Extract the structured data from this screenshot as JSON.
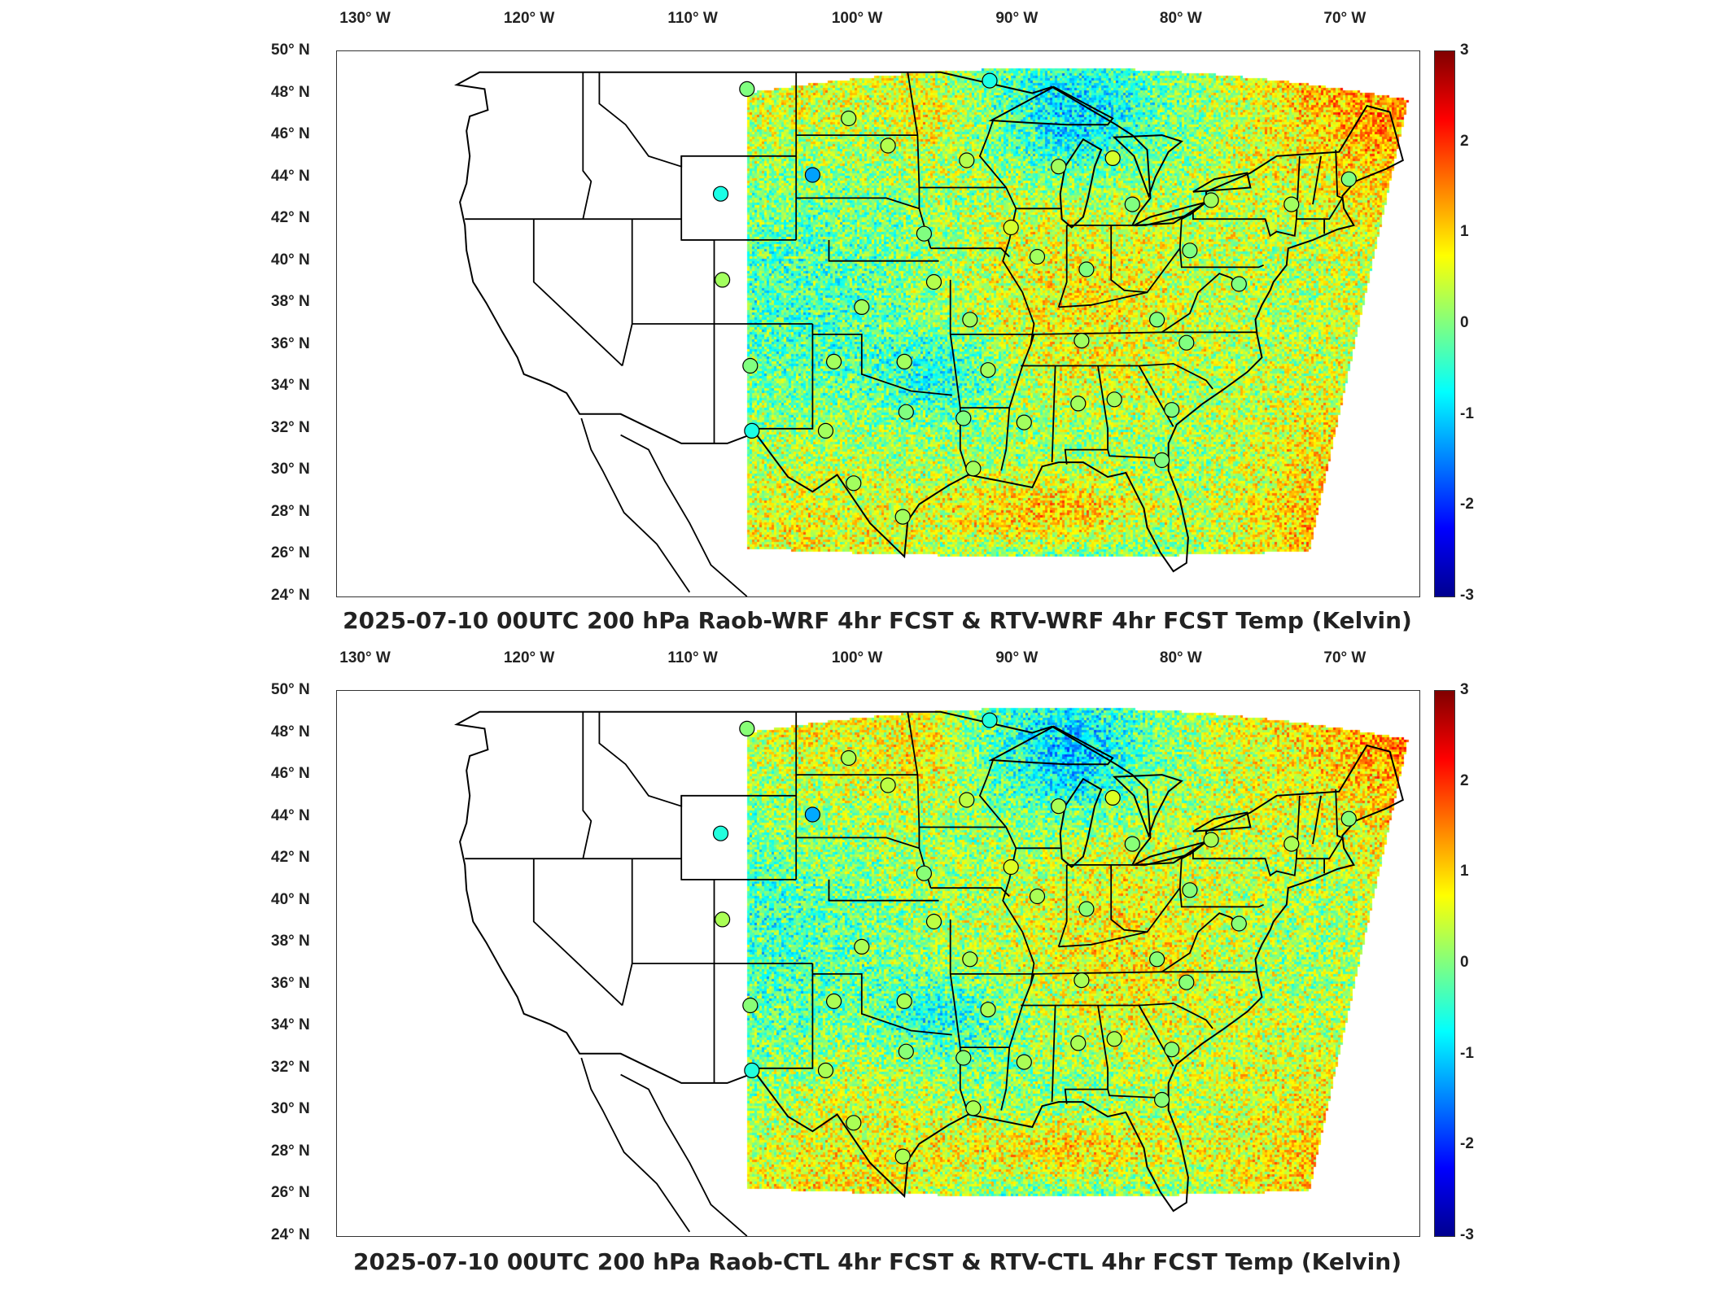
{
  "panels": [
    {
      "id": "top",
      "title": "2025-07-10 00UTC 200 hPa Raob-WRF 4hr FCST & RTV-WRF 4hr FCST Temp (Kelvin)"
    },
    {
      "id": "bottom",
      "title": "2025-07-10 00UTC 200 hPa Raob-CTL 4hr FCST & RTV-CTL 4hr FCST Temp (Kelvin)"
    }
  ],
  "lon_ticks": [
    "130° W",
    "120° W",
    "110° W",
    "100° W",
    "90° W",
    "80° W",
    "70° W"
  ],
  "lon_values": [
    -130,
    -120,
    -110,
    -100,
    -90,
    -80,
    -70
  ],
  "lat_ticks": [
    "50° N",
    "48° N",
    "46° N",
    "44° N",
    "42° N",
    "40° N",
    "38° N",
    "36° N",
    "34° N",
    "32° N",
    "30° N",
    "28° N",
    "26° N",
    "24° N"
  ],
  "lat_values": [
    50,
    48,
    46,
    44,
    42,
    40,
    38,
    36,
    34,
    32,
    30,
    28,
    26,
    24
  ],
  "colorbar": {
    "labels": [
      "3",
      "2",
      "1",
      "0",
      "-1",
      "-2",
      "-3"
    ],
    "values": [
      3,
      2,
      1,
      0,
      -1,
      -2,
      -3
    ],
    "range": [
      -3,
      3
    ],
    "colormap": [
      "#00008f",
      "#0000ff",
      "#0080ff",
      "#00ffff",
      "#80ff80",
      "#ffff00",
      "#ff8000",
      "#ff0000",
      "#800000"
    ]
  },
  "map_extent": {
    "lon": [
      -132,
      -66
    ],
    "lat": [
      24,
      50
    ]
  },
  "raob_stations": [
    {
      "lon": -107,
      "lat": 48.2,
      "value": 0.0
    },
    {
      "lon": -103,
      "lat": 44.1,
      "value": -1.3
    },
    {
      "lon": -108.6,
      "lat": 43.2,
      "value": -0.6
    },
    {
      "lon": -108.5,
      "lat": 39.1,
      "value": 0.2
    },
    {
      "lon": -106.8,
      "lat": 35.0,
      "value": 0.0
    },
    {
      "lon": -106.7,
      "lat": 31.9,
      "value": -0.6
    },
    {
      "lon": -100.8,
      "lat": 46.8,
      "value": 0.2
    },
    {
      "lon": -98.4,
      "lat": 45.5,
      "value": 0.3
    },
    {
      "lon": -93.6,
      "lat": 44.8,
      "value": 0.3
    },
    {
      "lon": -92.2,
      "lat": 48.6,
      "value": -0.6
    },
    {
      "lon": -88.0,
      "lat": 44.5,
      "value": 0.2
    },
    {
      "lon": -84.7,
      "lat": 44.9,
      "value": 0.5
    },
    {
      "lon": -83.5,
      "lat": 42.7,
      "value": 0.0
    },
    {
      "lon": -78.7,
      "lat": 42.9,
      "value": 0.2
    },
    {
      "lon": -73.8,
      "lat": 42.7,
      "value": 0.2
    },
    {
      "lon": -70.3,
      "lat": 43.9,
      "value": 0.0
    },
    {
      "lon": -96.2,
      "lat": 41.3,
      "value": 0.0
    },
    {
      "lon": -90.9,
      "lat": 41.6,
      "value": 0.5
    },
    {
      "lon": -89.3,
      "lat": 40.2,
      "value": 0.2
    },
    {
      "lon": -86.3,
      "lat": 39.6,
      "value": 0.0
    },
    {
      "lon": -80.0,
      "lat": 40.5,
      "value": 0.0
    },
    {
      "lon": -77.0,
      "lat": 38.9,
      "value": 0.0
    },
    {
      "lon": -95.6,
      "lat": 39.0,
      "value": 0.3
    },
    {
      "lon": -100.0,
      "lat": 37.8,
      "value": 0.2
    },
    {
      "lon": -93.4,
      "lat": 37.2,
      "value": 0.2
    },
    {
      "lon": -86.6,
      "lat": 36.2,
      "value": 0.2
    },
    {
      "lon": -80.2,
      "lat": 36.1,
      "value": 0.0
    },
    {
      "lon": -82.0,
      "lat": 37.2,
      "value": 0.0
    },
    {
      "lon": -101.7,
      "lat": 35.2,
      "value": 0.2
    },
    {
      "lon": -97.4,
      "lat": 35.2,
      "value": 0.2
    },
    {
      "lon": -92.3,
      "lat": 34.8,
      "value": 0.2
    },
    {
      "lon": -97.3,
      "lat": 32.8,
      "value": 0.0
    },
    {
      "lon": -93.8,
      "lat": 32.5,
      "value": 0.0
    },
    {
      "lon": -90.1,
      "lat": 32.3,
      "value": 0.2
    },
    {
      "lon": -86.8,
      "lat": 33.2,
      "value": 0.2
    },
    {
      "lon": -84.6,
      "lat": 33.4,
      "value": 0.2
    },
    {
      "lon": -81.1,
      "lat": 32.9,
      "value": 0.0
    },
    {
      "lon": -102.2,
      "lat": 31.9,
      "value": 0.2
    },
    {
      "lon": -100.5,
      "lat": 29.4,
      "value": 0.2
    },
    {
      "lon": -97.5,
      "lat": 27.8,
      "value": 0.2
    },
    {
      "lon": -93.2,
      "lat": 30.1,
      "value": 0.2
    },
    {
      "lon": -81.7,
      "lat": 30.5,
      "value": 0.0
    }
  ]
}
